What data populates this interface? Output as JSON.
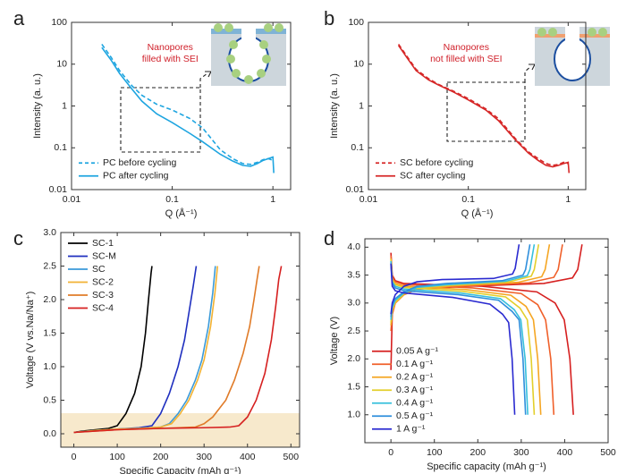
{
  "chart_data": [
    {
      "type": "line",
      "panel_label": "a",
      "xlabel": "Q (Å⁻¹)",
      "ylabel": "Intensity (a. u.)",
      "xlog": true,
      "ylog": true,
      "xlim": [
        0.01,
        1.5
      ],
      "ylim": [
        0.01,
        100
      ],
      "xticks": [
        0.01,
        0.1,
        1
      ],
      "yticks": [
        0.01,
        0.1,
        1,
        10,
        100
      ],
      "legend": "lower left",
      "annotation": [
        "Nanopores",
        "filled with SEI"
      ],
      "series": [
        {
          "name": "PC before cycling",
          "color": "#1ea5e0",
          "style": "dashed",
          "x": [
            0.02,
            0.025,
            0.03,
            0.04,
            0.05,
            0.07,
            0.1,
            0.15,
            0.2,
            0.3,
            0.4,
            0.5,
            0.6,
            0.7,
            0.8,
            0.9,
            1.0
          ],
          "values": [
            30,
            14,
            7,
            3,
            1.8,
            1.1,
            0.8,
            0.5,
            0.3,
            0.09,
            0.055,
            0.042,
            0.04,
            0.045,
            0.052,
            0.055,
            0.05
          ]
        },
        {
          "name": "PC after cycling",
          "color": "#1ea5e0",
          "style": "solid",
          "x": [
            0.02,
            0.025,
            0.03,
            0.04,
            0.05,
            0.07,
            0.1,
            0.15,
            0.2,
            0.3,
            0.4,
            0.5,
            0.6,
            0.7,
            0.8,
            0.9,
            1.0,
            1.02
          ],
          "values": [
            25,
            12,
            6,
            2.5,
            1.3,
            0.65,
            0.4,
            0.22,
            0.14,
            0.07,
            0.048,
            0.038,
            0.036,
            0.042,
            0.05,
            0.055,
            0.06,
            0.025
          ]
        }
      ]
    },
    {
      "type": "line",
      "panel_label": "b",
      "xlabel": "Q (Å⁻¹)",
      "ylabel": "Intensity (a. u.)",
      "xlog": true,
      "ylog": true,
      "xlim": [
        0.01,
        1.5
      ],
      "ylim": [
        0.01,
        100
      ],
      "xticks": [
        0.01,
        0.1,
        1
      ],
      "yticks": [
        0.01,
        0.1,
        1,
        10,
        100
      ],
      "legend": "lower left",
      "annotation": [
        "Nanopores",
        "not filled with SEI"
      ],
      "series": [
        {
          "name": "SC before cycling",
          "color": "#d62828",
          "style": "dashed",
          "x": [
            0.02,
            0.025,
            0.03,
            0.04,
            0.05,
            0.07,
            0.1,
            0.15,
            0.2,
            0.3,
            0.4,
            0.5,
            0.6,
            0.7,
            0.8,
            0.9,
            1.0
          ],
          "values": [
            30,
            14,
            7.5,
            4.5,
            3.3,
            2.3,
            1.5,
            0.85,
            0.5,
            0.16,
            0.08,
            0.055,
            0.042,
            0.038,
            0.04,
            0.045,
            0.042
          ]
        },
        {
          "name": "SC after cycling",
          "color": "#d62828",
          "style": "solid",
          "x": [
            0.02,
            0.025,
            0.03,
            0.04,
            0.05,
            0.07,
            0.1,
            0.15,
            0.2,
            0.3,
            0.4,
            0.5,
            0.6,
            0.7,
            0.8,
            0.9,
            1.0,
            1.02
          ],
          "values": [
            28,
            13,
            7,
            4.2,
            3.2,
            2.2,
            1.4,
            0.8,
            0.45,
            0.15,
            0.075,
            0.05,
            0.038,
            0.035,
            0.038,
            0.042,
            0.045,
            0.025
          ]
        }
      ]
    },
    {
      "type": "line",
      "panel_label": "c",
      "xlabel": "Specific Capacity (mAh g⁻¹)",
      "ylabel": "Voltage (V vs.Na/Na⁺)",
      "xlim": [
        -30,
        520
      ],
      "ylim": [
        -0.2,
        3.0
      ],
      "xticks": [
        0,
        100,
        200,
        300,
        400,
        500
      ],
      "yticks": [
        {
          "value": 0,
          "label": "0.0"
        },
        0.5,
        {
          "value": 1,
          "label": "1.0"
        },
        1.5,
        {
          "value": 2,
          "label": "2.0"
        },
        2.5,
        {
          "value": 3,
          "label": "3.0"
        }
      ],
      "legend": "upper left",
      "series": [
        {
          "name": "SC-1",
          "color": "#000000",
          "style": "solid",
          "x": [
            0,
            20,
            50,
            80,
            100,
            120,
            140,
            155,
            165,
            172,
            178,
            180
          ],
          "values": [
            0.02,
            0.04,
            0.06,
            0.08,
            0.12,
            0.3,
            0.6,
            1.0,
            1.5,
            2.0,
            2.4,
            2.5
          ]
        },
        {
          "name": "SC-M",
          "color": "#1f2fbf",
          "style": "solid",
          "x": [
            0,
            50,
            100,
            150,
            180,
            200,
            220,
            240,
            255,
            265,
            275,
            282
          ],
          "values": [
            0.02,
            0.05,
            0.07,
            0.09,
            0.12,
            0.3,
            0.6,
            1.0,
            1.4,
            1.8,
            2.2,
            2.5
          ]
        },
        {
          "name": "SC",
          "color": "#3a9ad9",
          "style": "solid",
          "x": [
            0,
            50,
            100,
            150,
            200,
            220,
            240,
            260,
            280,
            295,
            310,
            320,
            326
          ],
          "values": [
            0.02,
            0.05,
            0.07,
            0.08,
            0.1,
            0.15,
            0.3,
            0.5,
            0.8,
            1.1,
            1.6,
            2.1,
            2.5
          ]
        },
        {
          "name": "SC-2",
          "color": "#f2b233",
          "style": "solid",
          "x": [
            0,
            50,
            100,
            150,
            200,
            225,
            245,
            265,
            285,
            300,
            315,
            325,
            331
          ],
          "values": [
            0.02,
            0.05,
            0.07,
            0.08,
            0.1,
            0.15,
            0.3,
            0.5,
            0.8,
            1.1,
            1.6,
            2.1,
            2.5
          ]
        },
        {
          "name": "SC-3",
          "color": "#e07b28",
          "style": "solid",
          "x": [
            0,
            100,
            200,
            280,
            300,
            320,
            350,
            370,
            390,
            405,
            415,
            422,
            427
          ],
          "values": [
            0.02,
            0.06,
            0.08,
            0.1,
            0.15,
            0.25,
            0.5,
            0.8,
            1.2,
            1.6,
            2.0,
            2.3,
            2.5
          ]
        },
        {
          "name": "SC-4",
          "color": "#d62020",
          "style": "solid",
          "x": [
            0,
            100,
            200,
            300,
            360,
            380,
            400,
            420,
            440,
            455,
            465,
            472,
            478
          ],
          "values": [
            0.02,
            0.06,
            0.08,
            0.09,
            0.1,
            0.12,
            0.25,
            0.5,
            0.9,
            1.4,
            1.9,
            2.3,
            2.5
          ]
        }
      ]
    },
    {
      "type": "line",
      "panel_label": "d",
      "xlabel": "Specific capacity (mAh g⁻¹)",
      "ylabel": "Voltage (V)",
      "xlim": [
        -60,
        500
      ],
      "ylim": [
        0.5,
        4.15
      ],
      "xticks": [
        0,
        100,
        200,
        300,
        400,
        500
      ],
      "yticks": [
        {
          "value": 1,
          "label": "1.0"
        },
        1.5,
        {
          "value": 2,
          "label": "2.0"
        },
        2.5,
        {
          "value": 3,
          "label": "3.0"
        },
        3.5,
        {
          "value": 4,
          "label": "4.0"
        }
      ],
      "legend": "lower left",
      "series": [
        {
          "name": "0.05 A g⁻¹",
          "color": "#d62020",
          "style": "solid",
          "x": [
            0,
            3,
            10,
            30,
            60,
            176,
            352,
            418,
            430,
            440,
            null,
            0,
            3,
            10,
            30,
            210,
            336,
            378,
            399,
            412,
            420
          ],
          "values": [
            1.8,
            2.8,
            3.0,
            3.15,
            3.25,
            3.3,
            3.35,
            3.45,
            3.6,
            4.05,
            null,
            3.9,
            3.5,
            3.4,
            3.35,
            3.3,
            3.2,
            3.0,
            2.7,
            2.0,
            1.0
          ]
        },
        {
          "name": "0.1 A g⁻¹",
          "color": "#f0602a",
          "style": "solid",
          "x": [
            0,
            3,
            10,
            30,
            60,
            158,
            316,
            375,
            385,
            395,
            null,
            0,
            3,
            10,
            30,
            188,
            300,
            338,
            356,
            368,
            375
          ],
          "values": [
            2.5,
            2.8,
            3.0,
            3.15,
            3.25,
            3.3,
            3.36,
            3.46,
            3.6,
            4.05,
            null,
            3.85,
            3.45,
            3.38,
            3.33,
            3.27,
            3.17,
            2.97,
            2.7,
            2.0,
            1.0
          ]
        },
        {
          "name": "0.2 A g⁻¹",
          "color": "#f5a623",
          "style": "solid",
          "x": [
            0,
            3,
            10,
            30,
            60,
            146,
            292,
            347,
            355,
            365,
            null,
            0,
            3,
            10,
            30,
            173,
            276,
            311,
            328,
            338,
            345
          ],
          "values": [
            2.6,
            2.85,
            3.0,
            3.15,
            3.26,
            3.31,
            3.37,
            3.47,
            3.6,
            4.05,
            null,
            3.8,
            3.42,
            3.35,
            3.3,
            3.24,
            3.14,
            2.94,
            2.7,
            2.0,
            1.0
          ]
        },
        {
          "name": "0.3 A g⁻¹",
          "color": "#e3cf2b",
          "style": "solid",
          "x": [
            0,
            3,
            10,
            30,
            60,
            136,
            272,
            323,
            330,
            340,
            null,
            0,
            3,
            10,
            30,
            165,
            264,
            297,
            314,
            323,
            330
          ],
          "values": [
            2.65,
            2.9,
            3.02,
            3.17,
            3.27,
            3.32,
            3.38,
            3.48,
            3.6,
            4.05,
            null,
            3.78,
            3.4,
            3.33,
            3.28,
            3.21,
            3.11,
            2.91,
            2.7,
            2.0,
            1.0
          ]
        },
        {
          "name": "0.4 A g⁻¹",
          "color": "#37c0dc",
          "style": "solid",
          "x": [
            0,
            3,
            10,
            30,
            60,
            132,
            264,
            314,
            320,
            330,
            null,
            0,
            3,
            10,
            30,
            158,
            252,
            284,
            299,
            309,
            315
          ],
          "values": [
            2.7,
            2.92,
            3.05,
            3.18,
            3.28,
            3.33,
            3.39,
            3.49,
            3.6,
            4.05,
            null,
            3.75,
            3.38,
            3.3,
            3.25,
            3.18,
            3.08,
            2.88,
            2.7,
            2.0,
            1.0
          ]
        },
        {
          "name": "0.5 A g⁻¹",
          "color": "#2f8fdc",
          "style": "solid",
          "x": [
            0,
            3,
            10,
            30,
            60,
            128,
            256,
            304,
            310,
            320,
            null,
            0,
            3,
            10,
            30,
            155,
            248,
            279,
            295,
            304,
            310
          ],
          "values": [
            2.75,
            2.95,
            3.08,
            3.2,
            3.3,
            3.35,
            3.4,
            3.5,
            3.6,
            4.05,
            null,
            3.72,
            3.35,
            3.27,
            3.22,
            3.15,
            3.05,
            2.85,
            2.7,
            2.0,
            1.0
          ]
        },
        {
          "name": "1 A g⁻¹",
          "color": "#2a2ad0",
          "style": "solid",
          "x": [
            0,
            3,
            10,
            30,
            60,
            118,
            236,
            280,
            286,
            295,
            null,
            0,
            3,
            10,
            30,
            143,
            228,
            257,
            271,
            279,
            285
          ],
          "values": [
            2.8,
            3.0,
            3.15,
            3.3,
            3.38,
            3.42,
            3.44,
            3.52,
            3.62,
            4.05,
            null,
            3.7,
            3.3,
            3.22,
            3.18,
            3.1,
            2.98,
            2.8,
            2.65,
            2.0,
            1.0
          ]
        }
      ]
    }
  ]
}
